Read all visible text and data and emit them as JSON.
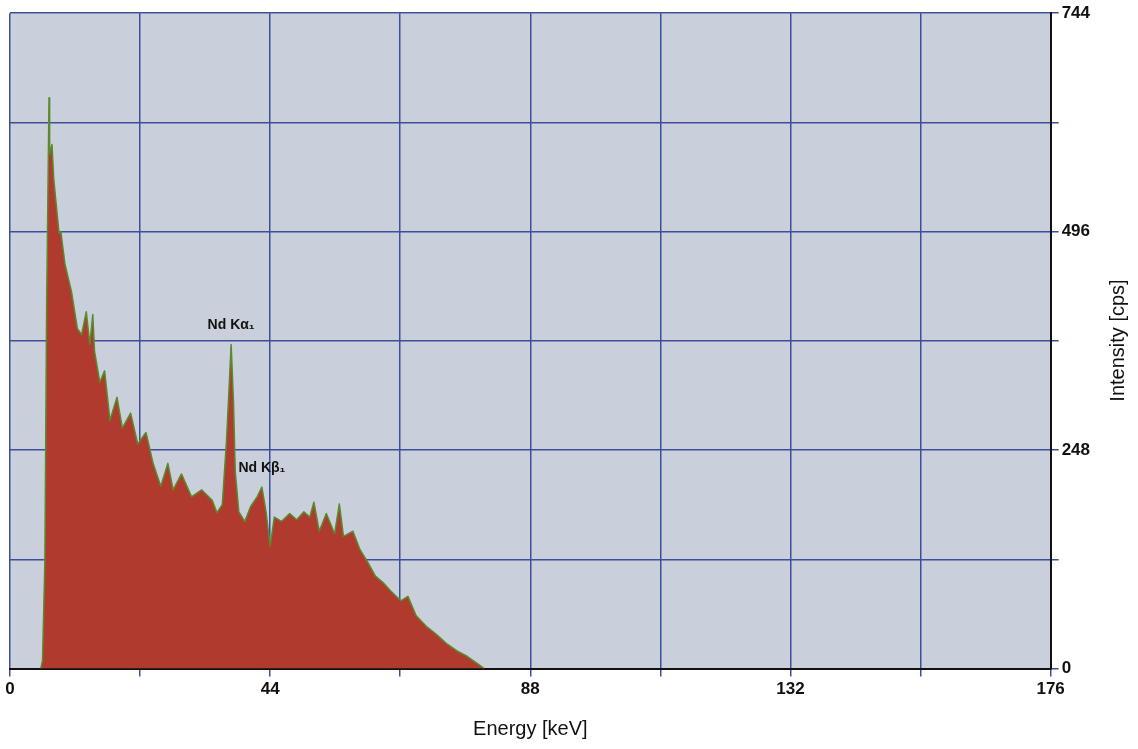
{
  "chart_data": {
    "type": "area",
    "xlabel": "Energy [keV]",
    "ylabel": "Intensity [cps]",
    "xlim": [
      0,
      176
    ],
    "xticks": [
      0,
      {
        "value": 22,
        "label": null
      },
      44,
      {
        "value": 66,
        "label": null
      },
      88,
      {
        "value": 110,
        "label": null
      },
      132,
      {
        "value": 154,
        "label": null
      },
      176
    ],
    "ylim": [
      0,
      744
    ],
    "yticks": [
      0,
      {
        "value": 124,
        "label": null
      },
      248,
      {
        "value": 372,
        "label": null
      },
      496,
      {
        "value": 620,
        "label": null
      },
      744
    ],
    "grid": true,
    "legend": false,
    "marker": "none",
    "annotations": [
      {
        "text": "Nd Kα₁",
        "x": 37.4,
        "y": 368
      },
      {
        "text": "Nd Kβ₁",
        "x": 42.6,
        "y": 206
      }
    ],
    "series": [
      {
        "color": "#b03a2e",
        "x": [
          5.2,
          5.5,
          5.9,
          6.2,
          6.6,
          6.7,
          7.1,
          7.4,
          7.8,
          8.3,
          8.6,
          9.3,
          10.4,
          11.4,
          12.1,
          12.9,
          13.5,
          14.0,
          14.3,
          15.2,
          16.0,
          16.9,
          18.1,
          19.0,
          20.4,
          21.6,
          23.0,
          24.2,
          25.5,
          26.7,
          27.6,
          29.0,
          30.7,
          32.4,
          34.2,
          35.0,
          35.9,
          36.6,
          37.1,
          37.4,
          37.8,
          38.1,
          38.7,
          39.7,
          40.7,
          41.8,
          42.6,
          43.3,
          44.0,
          44.7,
          45.9,
          47.3,
          48.5,
          49.7,
          50.7,
          51.4,
          52.3,
          53.5,
          54.9,
          55.7,
          56.4,
          58.0,
          59.2,
          60.4,
          61.8,
          63.2,
          64.4,
          66.1,
          67.3,
          68.7,
          70.4,
          72.1,
          73.9,
          75.6,
          77.3,
          79.0,
          80.2
        ],
        "values": [
          0,
          9,
          122,
          415,
          648,
          584,
          595,
          556,
          528,
          494,
          496,
          459,
          428,
          386,
          379,
          405,
          368,
          402,
          360,
          325,
          338,
          282,
          308,
          273,
          290,
          255,
          268,
          233,
          207,
          233,
          203,
          221,
          195,
          203,
          191,
          177,
          186,
          257,
          325,
          368,
          302,
          223,
          178,
          167,
          184,
          195,
          206,
          178,
          139,
          172,
          167,
          176,
          169,
          178,
          172,
          189,
          156,
          176,
          153,
          187,
          150,
          156,
          135,
          122,
          105,
          97,
          88,
          77,
          82,
          60,
          48,
          39,
          28,
          20,
          14,
          6,
          0
        ]
      }
    ]
  }
}
